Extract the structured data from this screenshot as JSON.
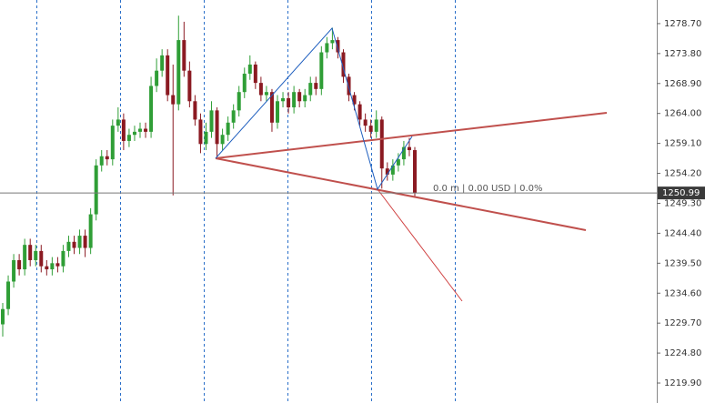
{
  "chart_data": {
    "type": "candlestick",
    "series": {
      "open": [
        1229.5,
        1232.0,
        1236.5,
        1240.0,
        1238.5,
        1242.5,
        1240.0,
        1241.5,
        1239.0,
        1238.5,
        1239.5,
        1239.0,
        1241.5,
        1243.0,
        1242.0,
        1244.0,
        1242.0,
        1247.5,
        1255.5,
        1257.0,
        1256.5,
        1262.0,
        1263.0,
        1259.5,
        1260.5,
        1261.0,
        1261.5,
        1261.0,
        1268.5,
        1271.0,
        1273.5,
        1267.0,
        1265.5,
        1276.0,
        1271.0,
        1266.0,
        1263.0,
        1259.0,
        1261.0,
        1264.5,
        1259.0,
        1260.5,
        1262.5,
        1264.5,
        1267.5,
        1270.5,
        1272.0,
        1269.0,
        1267.0,
        1267.5,
        1262.5,
        1266.0,
        1266.5,
        1265.0,
        1267.5,
        1266.0,
        1267.0,
        1269.0,
        1268.0,
        1274.0,
        1275.5,
        1276.0,
        1274.0,
        1270.0,
        1267.0,
        1265.5,
        1263.0,
        1262.0,
        1261.0,
        1263.0,
        1255.0,
        1254.0,
        1255.5,
        1256.5,
        1258.5,
        1258.0
      ],
      "high": [
        1233.0,
        1237.5,
        1241.0,
        1241.0,
        1243.5,
        1243.5,
        1242.5,
        1242.5,
        1240.0,
        1240.5,
        1240.5,
        1242.5,
        1244.0,
        1244.0,
        1245.0,
        1245.0,
        1248.5,
        1256.5,
        1258.0,
        1258.0,
        1263.0,
        1265.0,
        1264.0,
        1261.5,
        1262.0,
        1262.5,
        1262.5,
        1270.0,
        1273.0,
        1274.5,
        1274.5,
        1272.0,
        1280.0,
        1279.0,
        1272.5,
        1267.0,
        1264.0,
        1262.5,
        1266.0,
        1265.0,
        1261.5,
        1263.5,
        1265.5,
        1268.5,
        1271.5,
        1273.5,
        1272.5,
        1270.0,
        1268.5,
        1268.0,
        1267.0,
        1267.5,
        1267.5,
        1268.5,
        1268.0,
        1268.0,
        1270.0,
        1270.0,
        1275.0,
        1276.5,
        1278.0,
        1276.5,
        1274.5,
        1270.5,
        1267.5,
        1266.0,
        1264.0,
        1263.0,
        1264.5,
        1263.5,
        1256.0,
        1256.5,
        1257.5,
        1259.5,
        1260.0,
        1258.5
      ],
      "low": [
        1227.5,
        1231.0,
        1235.5,
        1237.5,
        1237.5,
        1239.0,
        1239.0,
        1238.0,
        1237.5,
        1237.5,
        1238.0,
        1238.0,
        1240.5,
        1241.0,
        1241.0,
        1240.5,
        1241.0,
        1246.5,
        1254.5,
        1255.5,
        1255.5,
        1261.0,
        1258.0,
        1258.5,
        1259.5,
        1260.0,
        1260.0,
        1260.0,
        1267.5,
        1270.0,
        1266.0,
        1250.6,
        1264.5,
        1270.0,
        1265.0,
        1262.0,
        1257.5,
        1258.0,
        1260.0,
        1256.8,
        1258.0,
        1259.5,
        1261.5,
        1263.5,
        1266.5,
        1269.5,
        1268.0,
        1266.0,
        1266.0,
        1261.0,
        1261.5,
        1265.0,
        1264.0,
        1264.0,
        1265.0,
        1265.0,
        1266.0,
        1267.0,
        1267.0,
        1273.0,
        1274.5,
        1273.0,
        1269.0,
        1266.0,
        1264.5,
        1262.0,
        1261.0,
        1260.0,
        1260.0,
        1251.7,
        1253.0,
        1253.0,
        1254.5,
        1255.5,
        1257.0,
        1250.2
      ],
      "close": [
        1232.0,
        1236.5,
        1240.0,
        1238.5,
        1242.5,
        1240.0,
        1241.5,
        1239.0,
        1238.5,
        1239.5,
        1239.0,
        1241.5,
        1243.0,
        1242.0,
        1244.0,
        1242.0,
        1247.5,
        1255.5,
        1257.0,
        1256.5,
        1262.0,
        1263.0,
        1259.5,
        1260.5,
        1261.0,
        1261.5,
        1261.0,
        1268.5,
        1271.0,
        1273.5,
        1267.0,
        1265.5,
        1276.0,
        1271.0,
        1266.0,
        1263.0,
        1259.0,
        1261.0,
        1264.5,
        1259.0,
        1260.5,
        1262.5,
        1264.5,
        1267.5,
        1270.5,
        1272.0,
        1269.0,
        1267.0,
        1267.5,
        1262.5,
        1266.0,
        1266.5,
        1265.0,
        1267.5,
        1266.0,
        1267.0,
        1269.0,
        1268.0,
        1274.0,
        1275.5,
        1276.0,
        1274.0,
        1270.0,
        1267.0,
        1265.5,
        1263.0,
        1262.0,
        1261.0,
        1263.0,
        1255.0,
        1254.0,
        1255.5,
        1256.5,
        1258.5,
        1258.0,
        1250.99
      ]
    },
    "up_color": "#2f9e36",
    "down_color": "#8b1a22",
    "ylim": [
      1216.63,
      1282.56
    ],
    "yticks": [
      {
        "value": 1278.7,
        "label": "1278.70"
      },
      {
        "value": 1273.8,
        "label": "1273.80"
      },
      {
        "value": 1268.9,
        "label": "1268.90"
      },
      {
        "value": 1264.0,
        "label": "1264.00"
      },
      {
        "value": 1259.1,
        "label": "1259.10"
      },
      {
        "value": 1254.2,
        "label": "1254.20"
      },
      {
        "value": 1249.3,
        "label": "1249.30"
      },
      {
        "value": 1244.4,
        "label": "1244.40"
      },
      {
        "value": 1239.5,
        "label": "1239.50"
      },
      {
        "value": 1234.6,
        "label": "1234.60"
      },
      {
        "value": 1229.7,
        "label": "1229.70"
      },
      {
        "value": 1224.8,
        "label": "1224.80"
      },
      {
        "value": 1219.9,
        "label": "1219.90"
      }
    ],
    "current_price": {
      "value": 1250.99,
      "label": "1250.99"
    },
    "annotation": "0.0 m | 0.00 USD | 0.0%"
  }
}
